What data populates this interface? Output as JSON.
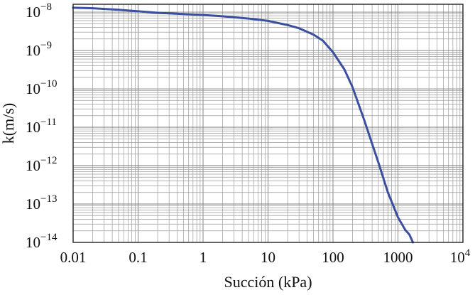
{
  "chart_data": {
    "type": "line",
    "xlabel": "Succión (kPa)",
    "ylabel": "k(m/s)",
    "xscale": "log",
    "yscale": "log",
    "xlim": [
      0.01,
      10000
    ],
    "ylim": [
      1e-14,
      1.6e-08
    ],
    "grid": true,
    "x_ticks": [
      {
        "value": 0.01,
        "label": "0.01"
      },
      {
        "value": 0.1,
        "label": "0.1"
      },
      {
        "value": 1,
        "label": "1"
      },
      {
        "value": 10,
        "label": "10"
      },
      {
        "value": 100,
        "label": "100"
      },
      {
        "value": 1000,
        "label": "1000"
      },
      {
        "value": 10000,
        "label": "10",
        "sup": "4"
      }
    ],
    "y_ticks": [
      {
        "value": 1e-08,
        "base": "10",
        "sup": "−8"
      },
      {
        "value": 1e-09,
        "base": "10",
        "sup": "−9"
      },
      {
        "value": 1e-10,
        "base": "10",
        "sup": "−10"
      },
      {
        "value": 1e-11,
        "base": "10",
        "sup": "−11"
      },
      {
        "value": 1e-12,
        "base": "10",
        "sup": "−12"
      },
      {
        "value": 1e-13,
        "base": "10",
        "sup": "−13"
      },
      {
        "value": 1e-14,
        "base": "10",
        "sup": "−14"
      }
    ],
    "series": [
      {
        "color": "#3a4fa0",
        "x": [
          0.01,
          0.02,
          0.05,
          0.1,
          0.2,
          0.5,
          1,
          2,
          5,
          10,
          20,
          30,
          50,
          70,
          100,
          150,
          200,
          300,
          500,
          700,
          1000,
          1300,
          1500,
          1700
        ],
        "y": [
          1.3e-08,
          1.26e-08,
          1.15e-08,
          1.05e-08,
          9.6e-09,
          8.9e-09,
          8.4e-09,
          7.8e-09,
          6.8e-09,
          5.9e-09,
          4.6e-09,
          3.8e-09,
          2.6e-09,
          1.8e-09,
          9e-10,
          3.2e-10,
          1.1e-10,
          1.6e-11,
          1.2e-12,
          2e-13,
          4.5e-14,
          2.1e-14,
          1.6e-14,
          1e-14
        ]
      }
    ]
  }
}
